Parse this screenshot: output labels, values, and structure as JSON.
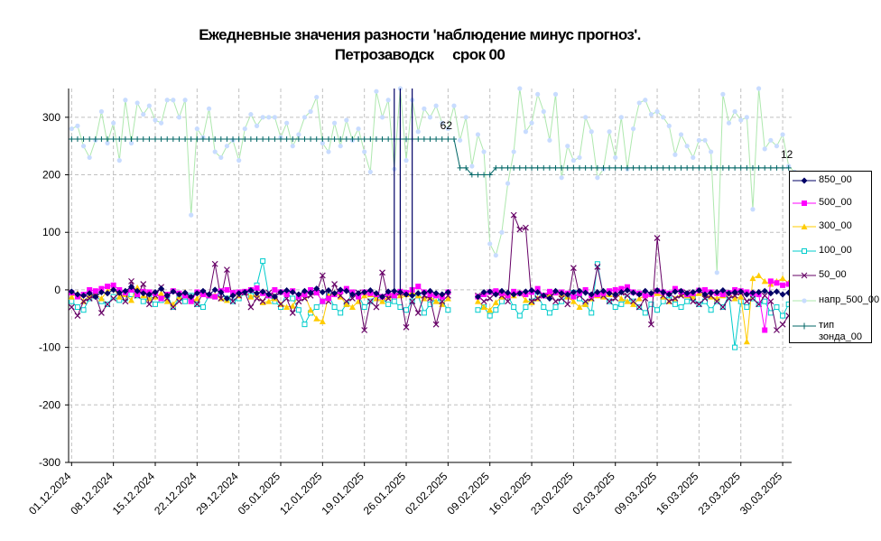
{
  "chart_data": {
    "type": "line",
    "title": "Ежедневные значения разности 'наблюдение минус прогноз'.",
    "subtitle": "Петрозаводск     срок 00",
    "xlabel": "",
    "ylabel": "",
    "ylim": [
      -300,
      300
    ],
    "yticks": [
      -300,
      -200,
      -100,
      0,
      100,
      200,
      300
    ],
    "x_start": "01.12.2024",
    "x_tick_labels": [
      "01.12.2024",
      "08.12.2024",
      "15.12.2024",
      "22.12.2024",
      "29.12.2024",
      "05.01.2025",
      "12.01.2025",
      "19.01.2025",
      "26.01.2025",
      "02.02.2025",
      "09.02.2025",
      "16.02.2025",
      "23.02.2025",
      "02.03.2025",
      "09.03.2025",
      "16.03.2025",
      "23.03.2025",
      "30.03.2025"
    ],
    "grid": true,
    "legend_position": "right",
    "annotations": [
      {
        "text": "62",
        "x": "02.02.2025",
        "y": 262
      },
      {
        "text": "12",
        "x": "31.03.2025",
        "y": 212
      }
    ],
    "series": [
      {
        "name": "850_00",
        "color": "#000066",
        "marker": "diamond",
        "values": [
          -3,
          -8,
          -10,
          -6,
          -12,
          -4,
          -6,
          0,
          -5,
          -2,
          5,
          -2,
          -6,
          -8,
          -4,
          2,
          -10,
          -3,
          -8,
          -5,
          -12,
          -6,
          -2,
          -8,
          0,
          -4,
          -15,
          -10,
          -6,
          -4,
          -1,
          -6,
          -3,
          -8,
          -12,
          -4,
          -1,
          -4,
          -8,
          -2,
          -5,
          2,
          -4,
          -1,
          -6,
          0,
          -2,
          -8,
          -6,
          -4,
          -1,
          -6,
          -12,
          -3,
          -2,
          -4,
          -8,
          -10,
          -6,
          -5,
          -2,
          -6,
          -8,
          -4,
          -1,
          -4,
          -6,
          -10,
          -12,
          -4,
          -3,
          -8,
          -2,
          -5,
          -8,
          -6,
          -3,
          -1,
          -4,
          -10,
          -15,
          -2,
          -6,
          -8,
          -4,
          -2,
          -5,
          -8,
          -4,
          -2,
          -6,
          -8,
          -4,
          -1,
          -5,
          -8,
          -2,
          -6,
          -1,
          -4,
          -8,
          -3,
          -2,
          -6,
          -4,
          -1,
          -8,
          -5,
          -4,
          -1,
          -6,
          -4,
          -3,
          -8,
          -5,
          -4,
          -2,
          -6,
          -3,
          -8,
          -5,
          -4,
          -10
        ]
      },
      {
        "name": "500_00",
        "color": "#ff00ff",
        "marker": "square",
        "values": [
          -5,
          -12,
          -8,
          0,
          -2,
          2,
          6,
          8,
          0,
          -5,
          0,
          -8,
          -3,
          -4,
          -6,
          -15,
          -8,
          -2,
          -6,
          -10,
          -20,
          -4,
          -8,
          -10,
          -12,
          -2,
          0,
          -5,
          -4,
          -3,
          0,
          3,
          -6,
          -10,
          0,
          -4,
          -8,
          -2,
          -12,
          -8,
          0,
          -5,
          -20,
          -15,
          -8,
          -3,
          2,
          -4,
          -12,
          -4,
          -6,
          -8,
          -12,
          -6,
          -10,
          -3,
          -5,
          0,
          6,
          -4,
          -8,
          -10,
          -12,
          -4,
          -2,
          5,
          3,
          -6,
          -12,
          -8,
          -4,
          -2,
          -6,
          -10,
          -3,
          -6,
          -8,
          -4,
          2,
          -10,
          -3,
          -5,
          -4,
          -6,
          -12,
          -6,
          0,
          -10,
          -8,
          -6,
          -2,
          0,
          2,
          5,
          -4,
          -6,
          -10,
          -8,
          -2,
          -4,
          -6,
          2,
          -3,
          -8,
          -6,
          -1,
          0,
          -4,
          -6,
          -8,
          -5,
          0,
          -2,
          -4,
          -6,
          -8,
          -70,
          15,
          12,
          8,
          10,
          15,
          12,
          10
        ]
      },
      {
        "name": "300_00",
        "color": "#ffcc00",
        "marker": "triangle",
        "values": [
          -12,
          -6,
          -20,
          -10,
          -8,
          -15,
          -2,
          3,
          -12,
          -8,
          -18,
          4,
          -10,
          -15,
          -12,
          -6,
          -20,
          -25,
          -12,
          -4,
          -20,
          -15,
          -5,
          -8,
          -10,
          -15,
          -18,
          -6,
          -10,
          -4,
          -12,
          -8,
          -22,
          -20,
          -15,
          -25,
          -30,
          -28,
          -10,
          -8,
          -35,
          -50,
          -55,
          -10,
          -5,
          -12,
          -25,
          -30,
          -20,
          -10,
          -8,
          -15,
          -20,
          -12,
          -6,
          -10,
          -8,
          -4,
          -10,
          -15,
          -12,
          -20,
          -25,
          -15,
          -10,
          -8,
          -5,
          -10,
          -20,
          -30,
          -35,
          -22,
          -12,
          -8,
          -10,
          -5,
          -18,
          -22,
          -15,
          -10,
          -8,
          -5,
          -8,
          -12,
          -20,
          -30,
          -25,
          -15,
          -10,
          -12,
          -8,
          -5,
          -15,
          -20,
          -25,
          -15,
          -10,
          -8,
          -6,
          -12,
          -20,
          -15,
          -8,
          -10,
          -12,
          -6,
          -8,
          -12,
          -15,
          -10,
          -6,
          -15,
          -12,
          -90,
          20,
          25,
          15,
          10,
          15,
          20,
          12
        ]
      },
      {
        "name": "100_00",
        "color": "#00cccc",
        "marker": "square-open",
        "values": [
          -20,
          -30,
          -35,
          -15,
          -10,
          -20,
          -25,
          -12,
          -18,
          -15,
          -8,
          -10,
          -20,
          -15,
          -25,
          -18,
          -10,
          -30,
          -15,
          -20,
          -10,
          -25,
          -30,
          -10,
          -12,
          -8,
          -15,
          -20,
          -15,
          -5,
          -10,
          8,
          50,
          -10,
          -20,
          -30,
          -5,
          -15,
          -35,
          -60,
          -40,
          -30,
          -20,
          -10,
          -30,
          -40,
          -25,
          -5,
          -10,
          -30,
          -20,
          -10,
          -15,
          -25,
          -20,
          -30,
          -35,
          -20,
          -10,
          -40,
          -25,
          -15,
          -20,
          -35,
          -30,
          -20,
          -40,
          -50,
          -35,
          -30,
          -45,
          -35,
          -20,
          -10,
          -30,
          -45,
          -30,
          -20,
          -10,
          -30,
          -40,
          -30,
          -20,
          -10,
          -5,
          -15,
          -25,
          -40,
          45,
          -10,
          -20,
          -30,
          -25,
          -15,
          -20,
          -30,
          -40,
          -25,
          -35,
          -20,
          -10,
          -25,
          -30,
          -20,
          -15,
          -25,
          -20,
          -35,
          -20,
          -30,
          -10,
          -100,
          -20,
          -30,
          -15,
          -25,
          -20,
          -40,
          -30,
          -45,
          -25
        ]
      },
      {
        "name": "50_00",
        "color": "#660066",
        "marker": "x",
        "values": [
          -30,
          -45,
          -20,
          -15,
          -10,
          -40,
          -25,
          -15,
          -5,
          -20,
          15,
          -10,
          10,
          -25,
          -10,
          5,
          -15,
          -30,
          -20,
          -10,
          -15,
          -25,
          -5,
          -10,
          45,
          -15,
          35,
          -20,
          -10,
          -5,
          -30,
          -15,
          -20,
          -5,
          -10,
          -25,
          -15,
          -40,
          -20,
          -15,
          -10,
          -5,
          25,
          -20,
          10,
          -10,
          -20,
          -15,
          -5,
          -70,
          -20,
          -30,
          30,
          -15,
          -10,
          -5,
          -65,
          -20,
          -40,
          -10,
          -15,
          -60,
          -20,
          -10,
          -15,
          -25,
          -90,
          -70,
          -10,
          -20,
          -15,
          -5,
          -10,
          -20,
          130,
          105,
          108,
          -20,
          -15,
          -10,
          -5,
          -20,
          -15,
          -25,
          38,
          -10,
          -20,
          -15,
          40,
          -10,
          -20,
          -15,
          -5,
          -10,
          -20,
          -30,
          -15,
          -60,
          90,
          -10,
          -20,
          -15,
          -10,
          -5,
          -20,
          -25,
          -15,
          -10,
          -20,
          -30,
          -15,
          -10,
          -5,
          -20,
          -15,
          -25,
          -10,
          -20,
          -70,
          -60,
          -45
        ]
      },
      {
        "name": "напр_500_00",
        "color": "#c8dcff",
        "marker": "dot",
        "line_color": "#aee8ae",
        "values": [
          280,
          285,
          250,
          230,
          260,
          310,
          255,
          290,
          225,
          330,
          255,
          325,
          305,
          320,
          295,
          290,
          330,
          330,
          300,
          330,
          130,
          280,
          265,
          315,
          240,
          230,
          250,
          260,
          225,
          280,
          305,
          285,
          300,
          300,
          300,
          265,
          290,
          250,
          270,
          300,
          310,
          335,
          255,
          240,
          290,
          250,
          295,
          260,
          280,
          240,
          205,
          345,
          300,
          330,
          210,
          350,
          225,
          330,
          275,
          315,
          300,
          320,
          290,
          280,
          320,
          260,
          300,
          215,
          270,
          240,
          80,
          60,
          100,
          185,
          240,
          350,
          275,
          290,
          340,
          310,
          260,
          340,
          195,
          250,
          225,
          230,
          300,
          275,
          195,
          210,
          275,
          230,
          300,
          210,
          280,
          325,
          330,
          305,
          310,
          300,
          285,
          235,
          270,
          250,
          230,
          260,
          260,
          240,
          30,
          340,
          290,
          310,
          295,
          300,
          140,
          350,
          245,
          260,
          250,
          270,
          215,
          205,
          200
        ]
      },
      {
        "name": "тип\nзонда_00",
        "color": "#006666",
        "marker": "plus",
        "values": [
          262,
          262,
          262,
          262,
          262,
          262,
          262,
          262,
          262,
          262,
          262,
          262,
          262,
          262,
          262,
          262,
          262,
          262,
          262,
          262,
          262,
          262,
          262,
          262,
          262,
          262,
          262,
          262,
          262,
          262,
          262,
          262,
          262,
          262,
          262,
          262,
          262,
          262,
          262,
          262,
          262,
          262,
          262,
          262,
          262,
          262,
          262,
          262,
          262,
          262,
          262,
          262,
          262,
          262,
          262,
          262,
          262,
          262,
          262,
          262,
          262,
          262,
          262,
          262,
          262,
          212,
          212,
          200,
          200,
          200,
          200,
          212,
          212,
          212,
          212,
          212,
          212,
          212,
          212,
          212,
          212,
          212,
          212,
          212,
          212,
          212,
          212,
          212,
          212,
          212,
          212,
          212,
          212,
          212,
          212,
          212,
          212,
          212,
          212,
          212,
          212,
          212,
          212,
          212,
          212,
          212,
          212,
          212,
          212,
          212,
          212,
          212,
          212,
          212,
          212,
          212,
          212,
          212,
          212,
          212,
          212
        ]
      }
    ],
    "spikes": [
      {
        "series": "850_00",
        "x": "24.01.2025",
        "y_from": -8,
        "y_to": 350
      },
      {
        "series": "850_00",
        "x": "25.01.2025",
        "y_from": -8,
        "y_to": 350
      },
      {
        "series": "850_00",
        "x": "27.01.2025",
        "y_from": -8,
        "y_to": 350
      }
    ]
  }
}
